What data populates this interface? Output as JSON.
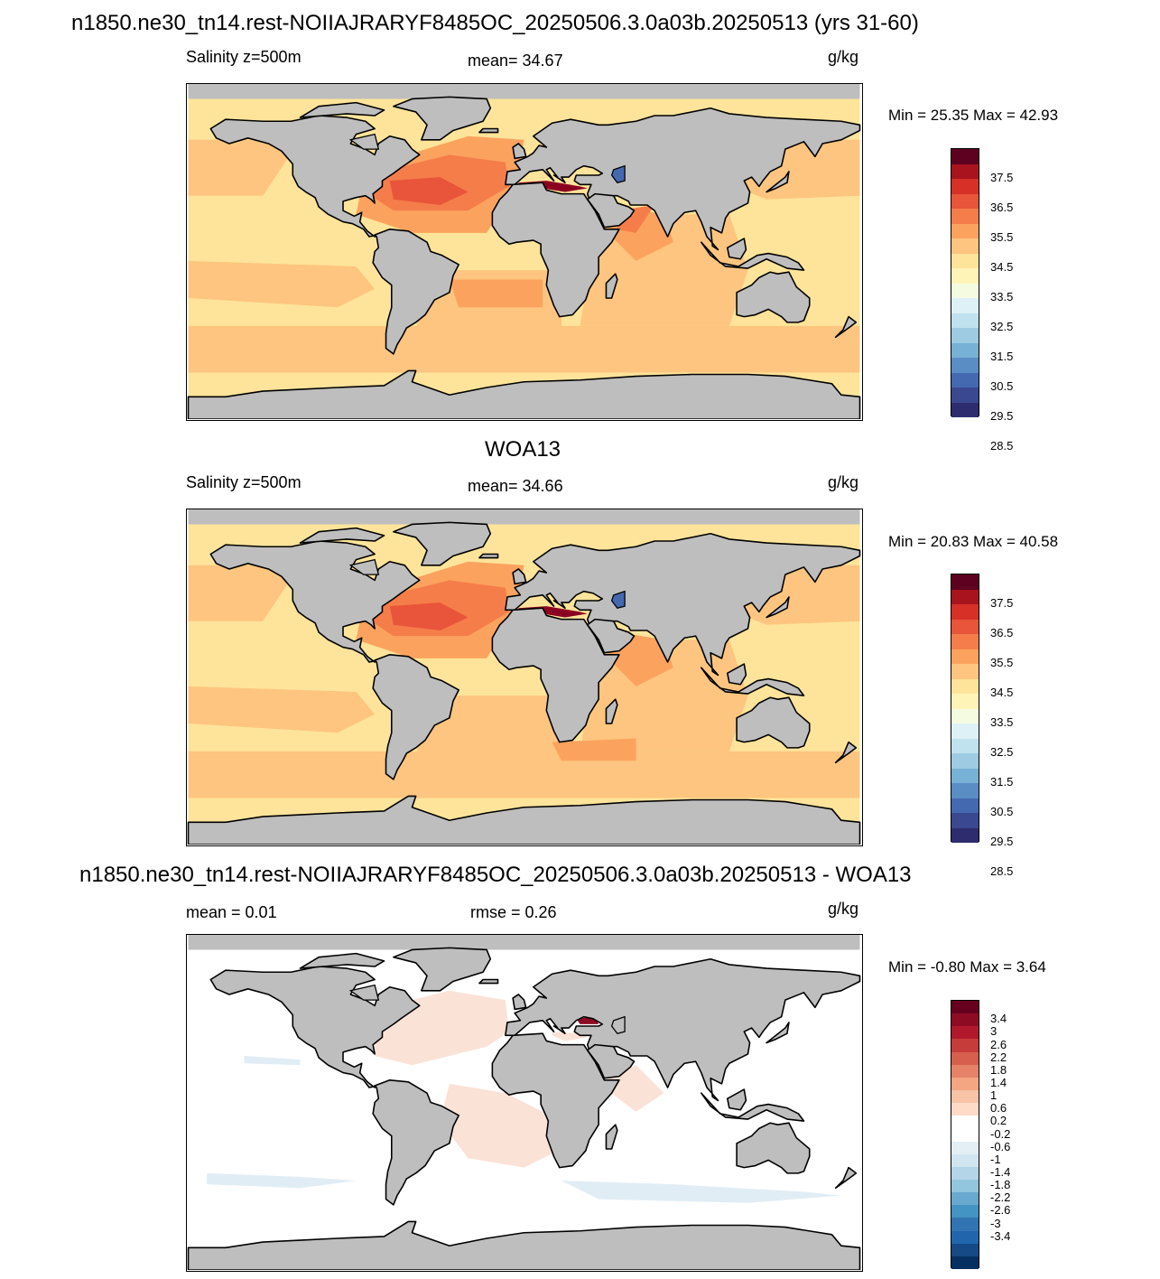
{
  "panels": [
    {
      "title": "n1850.ne30_tn14.rest-NOIIAJRARYF8485OC_20250506.3.0a03b.20250513 (yrs 31-60)",
      "left_label": "Salinity z=500m",
      "center_label": "mean=  34.67",
      "units": "g/kg",
      "minmax": "Min =  25.35 Max =  42.93",
      "colorbar": {
        "colors": [
          "#5e0020",
          "#a8141e",
          "#d73027",
          "#e8553a",
          "#f57d4a",
          "#fba35e",
          "#fdc57f",
          "#fee49a",
          "#fff4b8",
          "#f4fbe0",
          "#ddf1f6",
          "#bfe2ee",
          "#9ccbe2",
          "#77b1d5",
          "#5a8dc4",
          "#4569b0",
          "#3a4890",
          "#2e2c6e"
        ],
        "labels": [
          "37.5",
          "36.5",
          "35.5",
          "34.5",
          "33.5",
          "32.5",
          "31.5",
          "30.5",
          "29.5",
          "28.5"
        ]
      }
    },
    {
      "title": "WOA13",
      "left_label": "Salinity z=500m",
      "center_label": "mean=  34.66",
      "units": "g/kg",
      "minmax": "Min =  20.83 Max =  40.58",
      "colorbar": {
        "colors": [
          "#5e0020",
          "#a8141e",
          "#d73027",
          "#e8553a",
          "#f57d4a",
          "#fba35e",
          "#fdc57f",
          "#fee49a",
          "#fff4b8",
          "#f4fbe0",
          "#ddf1f6",
          "#bfe2ee",
          "#9ccbe2",
          "#77b1d5",
          "#5a8dc4",
          "#4569b0",
          "#3a4890",
          "#2e2c6e"
        ],
        "labels": [
          "37.5",
          "36.5",
          "35.5",
          "34.5",
          "33.5",
          "32.5",
          "31.5",
          "30.5",
          "29.5",
          "28.5"
        ]
      }
    },
    {
      "title": "n1850.ne30_tn14.rest-NOIIAJRARYF8485OC_20250506.3.0a03b.20250513 - WOA13",
      "left_label": "mean =   0.01",
      "center_label": "rmse =   0.26",
      "units": "g/kg",
      "minmax": "Min =  -0.80 Max =   3.64",
      "colorbar": {
        "colors": [
          "#67001f",
          "#8e0b24",
          "#b2182b",
          "#c63c3a",
          "#d6604d",
          "#e58267",
          "#f4a582",
          "#f8c3a7",
          "#fddbc7",
          "#ffffff",
          "#ffffff",
          "#e3eef5",
          "#d1e5f0",
          "#b4d5e8",
          "#92c5de",
          "#6aa9cf",
          "#4393c3",
          "#3274b1",
          "#2166ac",
          "#154a84",
          "#053061"
        ],
        "labels": [
          "3.4",
          "3",
          "2.6",
          "2.2",
          "1.8",
          "1.4",
          "1",
          "0.6",
          "0.2",
          "-0.2",
          "-0.6",
          "-1",
          "-1.4",
          "-1.8",
          "-2.2",
          "-2.6",
          "-3",
          "-3.4"
        ]
      }
    }
  ],
  "colors": {
    "land": "#bebebe",
    "coast": "#000000",
    "ocean_fresh": "#fee49a",
    "ocean_mid": "#fdc57f",
    "ocean_salty": "#fba35e",
    "ocean_high": "#f57d4a",
    "ocean_max": "#e8553a",
    "med": "#8b0020",
    "diff_white": "#ffffff",
    "diff_pos": "#fbe2d6",
    "diff_neg": "#e1edf5"
  }
}
